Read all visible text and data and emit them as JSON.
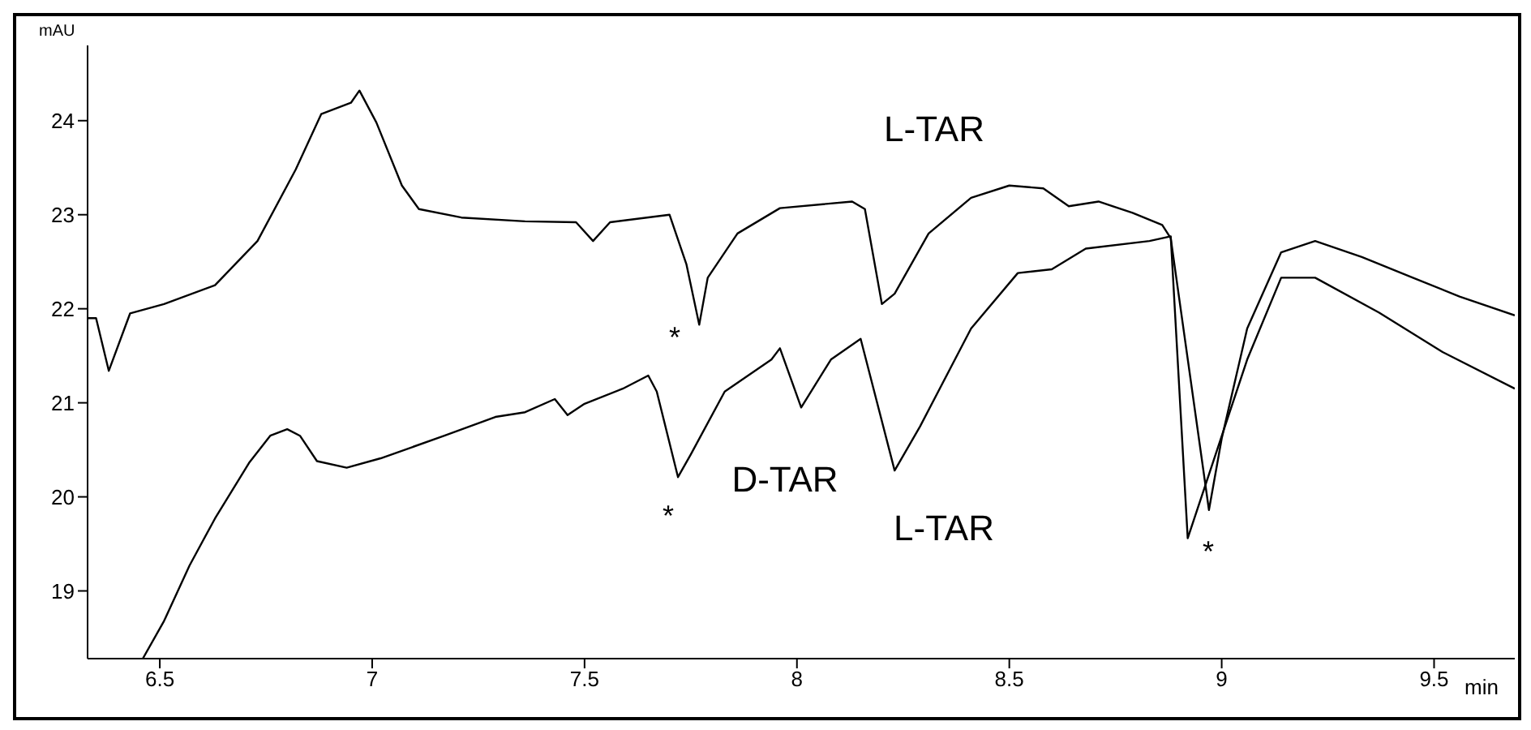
{
  "chart_data": {
    "type": "line",
    "xlabel": "min",
    "ylabel": "mAU",
    "xlim": [
      6.33,
      9.69
    ],
    "ylim": [
      18.28,
      24.8
    ],
    "xticks": [
      6.5,
      7,
      7.5,
      8,
      8.5,
      9,
      9.5
    ],
    "yticks": [
      19,
      20,
      21,
      22,
      23,
      24
    ],
    "series": [
      {
        "color": "#000000",
        "x": [
          6.33,
          6.35,
          6.38,
          6.43,
          6.51,
          6.63,
          6.73,
          6.82,
          6.88,
          6.95,
          6.97,
          7.01,
          7.07,
          7.11,
          7.21,
          7.36,
          7.48,
          7.52,
          7.56,
          7.7,
          7.74,
          7.77,
          7.79,
          7.86,
          7.96,
          8.13,
          8.16,
          8.2,
          8.23,
          8.31,
          8.41,
          8.5,
          8.58,
          8.64,
          8.71,
          8.79,
          8.86,
          8.88,
          8.97,
          9.0,
          9.06,
          9.14,
          9.22,
          9.33,
          9.45,
          9.56,
          9.69
        ],
        "values": [
          21.9,
          21.9,
          21.34,
          21.95,
          22.05,
          22.25,
          22.72,
          23.48,
          24.07,
          24.19,
          24.32,
          23.98,
          23.31,
          23.06,
          22.97,
          22.93,
          22.92,
          22.72,
          22.92,
          23.0,
          22.47,
          21.83,
          22.33,
          22.8,
          23.07,
          23.14,
          23.06,
          22.05,
          22.16,
          22.8,
          23.18,
          23.31,
          23.28,
          23.09,
          23.14,
          23.02,
          22.89,
          22.75,
          19.86,
          20.62,
          21.79,
          22.6,
          22.72,
          22.55,
          22.33,
          22.13,
          21.93
        ]
      },
      {
        "color": "#000000",
        "x": [
          6.46,
          6.51,
          6.57,
          6.63,
          6.71,
          6.76,
          6.8,
          6.83,
          6.87,
          6.94,
          7.02,
          7.17,
          7.29,
          7.36,
          7.43,
          7.46,
          7.5,
          7.59,
          7.65,
          7.67,
          7.72,
          7.75,
          7.83,
          7.94,
          7.96,
          8.01,
          8.08,
          8.15,
          8.23,
          8.29,
          8.41,
          8.52,
          8.6,
          8.68,
          8.83,
          8.88,
          8.92,
          9.06,
          9.14,
          9.22,
          9.37,
          9.52,
          9.69
        ],
        "values": [
          18.28,
          18.68,
          19.27,
          19.77,
          20.36,
          20.65,
          20.72,
          20.65,
          20.38,
          20.31,
          20.41,
          20.65,
          20.85,
          20.9,
          21.04,
          20.87,
          20.99,
          21.15,
          21.29,
          21.12,
          20.21,
          20.45,
          21.12,
          21.46,
          21.58,
          20.95,
          21.46,
          21.68,
          20.28,
          20.75,
          21.79,
          22.38,
          22.42,
          22.64,
          22.72,
          22.77,
          19.56,
          21.46,
          22.33,
          22.33,
          21.96,
          21.54,
          21.15
        ]
      }
    ],
    "annotations": [
      "L-TAR",
      "D-TAR",
      "L-TAR",
      "*",
      "*",
      "*"
    ]
  }
}
